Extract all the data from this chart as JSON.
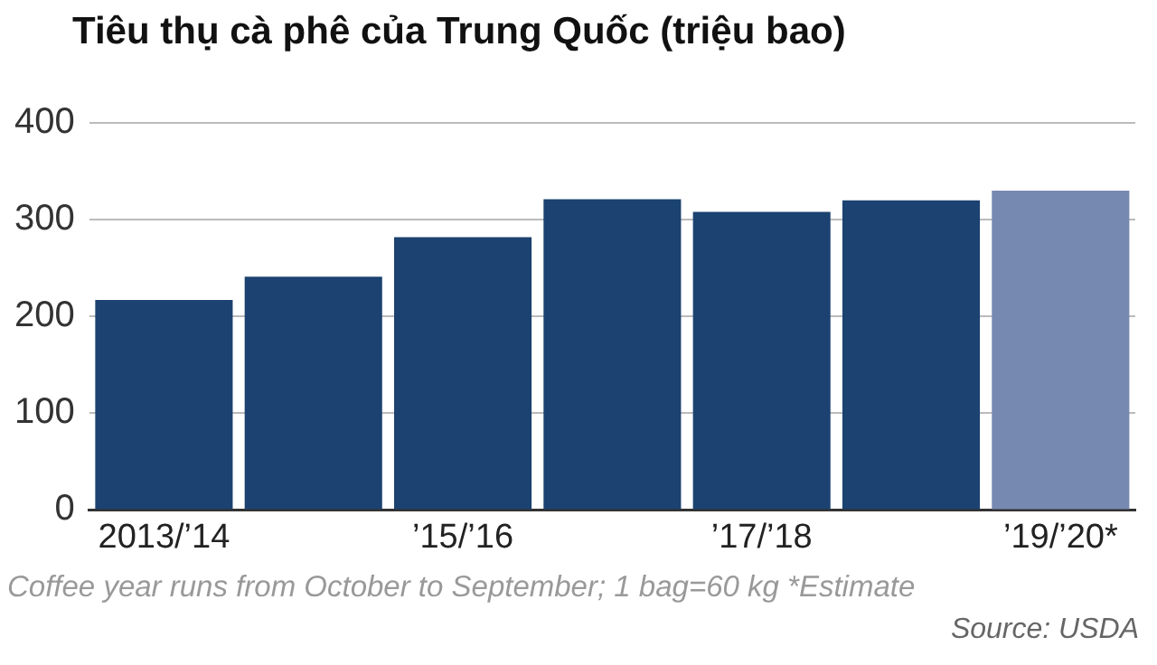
{
  "chart_data": {
    "type": "bar",
    "title": "Tiêu thụ cà phê của Trung Quốc (triệu bao)",
    "categories": [
      "2013/’14",
      null,
      "’15/’16",
      null,
      "’17/’18",
      null,
      "’19/’20*"
    ],
    "values": [
      217,
      241,
      282,
      321,
      308,
      320,
      330
    ],
    "colors": [
      "#1b4270",
      "#1b4270",
      "#1b4270",
      "#1b4270",
      "#1b4270",
      "#1b4270",
      "#7689b0"
    ],
    "ylim": [
      0,
      400
    ],
    "yticks": [
      0,
      100,
      200,
      300,
      400
    ],
    "grid": "y",
    "legend": false,
    "annotations": [
      "Coffee year runs from October to September; 1 bag=60 kg  *Estimate",
      "Source: USDA"
    ]
  }
}
